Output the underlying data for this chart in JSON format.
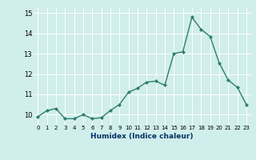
{
  "x": [
    0,
    1,
    2,
    3,
    4,
    5,
    6,
    7,
    8,
    9,
    10,
    11,
    12,
    13,
    14,
    15,
    16,
    17,
    18,
    19,
    20,
    21,
    22,
    23
  ],
  "y": [
    9.9,
    10.2,
    10.3,
    9.8,
    9.8,
    10.0,
    9.8,
    9.85,
    10.2,
    10.5,
    11.1,
    11.3,
    11.6,
    11.65,
    11.45,
    13.0,
    13.1,
    14.8,
    14.2,
    13.85,
    12.55,
    11.7,
    11.35,
    10.5
  ],
  "xlabel": "Humidex (Indice chaleur)",
  "ylim": [
    9.5,
    15.25
  ],
  "xlim": [
    -0.5,
    23.5
  ],
  "yticks": [
    10,
    11,
    12,
    13,
    14,
    15
  ],
  "xtick_labels": [
    "0",
    "1",
    "2",
    "3",
    "4",
    "5",
    "6",
    "7",
    "8",
    "9",
    "10",
    "11",
    "12",
    "13",
    "14",
    "15",
    "16",
    "17",
    "18",
    "19",
    "20",
    "21",
    "22",
    "23"
  ],
  "line_color": "#2e7d6e",
  "marker_color": "#2e7d6e",
  "bg_color": "#d0eeeb",
  "grid_color": "#ffffff",
  "xlabel_color": "#003366",
  "ytick_fontsize": 6,
  "xtick_fontsize": 5,
  "xlabel_fontsize": 6.5,
  "linewidth": 1.0,
  "markersize": 2.0
}
